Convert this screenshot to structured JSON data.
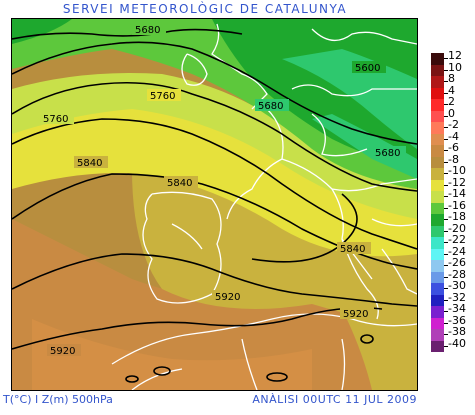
{
  "header": {
    "title": "SERVEI METEOROLÒGIC DE CATALUNYA"
  },
  "footer": {
    "variable_label": "T(°C) I Z(m) 500hPa",
    "analysis_label": "ANÀLISI 00UTC 11 JUL 2009"
  },
  "map": {
    "contour_labels": [
      "5600",
      "5680",
      "5680",
      "5680",
      "5760",
      "5760",
      "5840",
      "5840",
      "5840",
      "5920",
      "5920",
      "5920"
    ]
  },
  "legend": {
    "entries": [
      {
        "label": "12",
        "color": "#3a0b0b"
      },
      {
        "label": "10",
        "color": "#7a1414"
      },
      {
        "label": "8",
        "color": "#b01818"
      },
      {
        "label": "4",
        "color": "#e01010"
      },
      {
        "label": "2",
        "color": "#ff2a2a"
      },
      {
        "label": "0",
        "color": "#ff5050"
      },
      {
        "label": "-2",
        "color": "#ff7a5a"
      },
      {
        "label": "-4",
        "color": "#e08e50"
      },
      {
        "label": "-6",
        "color": "#c98a43"
      },
      {
        "label": "-8",
        "color": "#b88e3e"
      },
      {
        "label": "-10",
        "color": "#c9b23e"
      },
      {
        "label": "-12",
        "color": "#e6e13c"
      },
      {
        "label": "-14",
        "color": "#c8e04a"
      },
      {
        "label": "-16",
        "color": "#5dc83c"
      },
      {
        "label": "-18",
        "color": "#1ea82e"
      },
      {
        "label": "-20",
        "color": "#2ec86e"
      },
      {
        "label": "-22",
        "color": "#3ce6c8"
      },
      {
        "label": "-24",
        "color": "#5ef5f5"
      },
      {
        "label": "-26",
        "color": "#8ec8f0"
      },
      {
        "label": "-28",
        "color": "#6a9ae8"
      },
      {
        "label": "-30",
        "color": "#3c50e0"
      },
      {
        "label": "-32",
        "color": "#2020c0"
      },
      {
        "label": "-34",
        "color": "#7a20d0"
      },
      {
        "label": "-36",
        "color": "#d020d0"
      },
      {
        "label": "-38",
        "color": "#b040b8"
      },
      {
        "label": "-40",
        "color": "#6a2070"
      }
    ]
  }
}
